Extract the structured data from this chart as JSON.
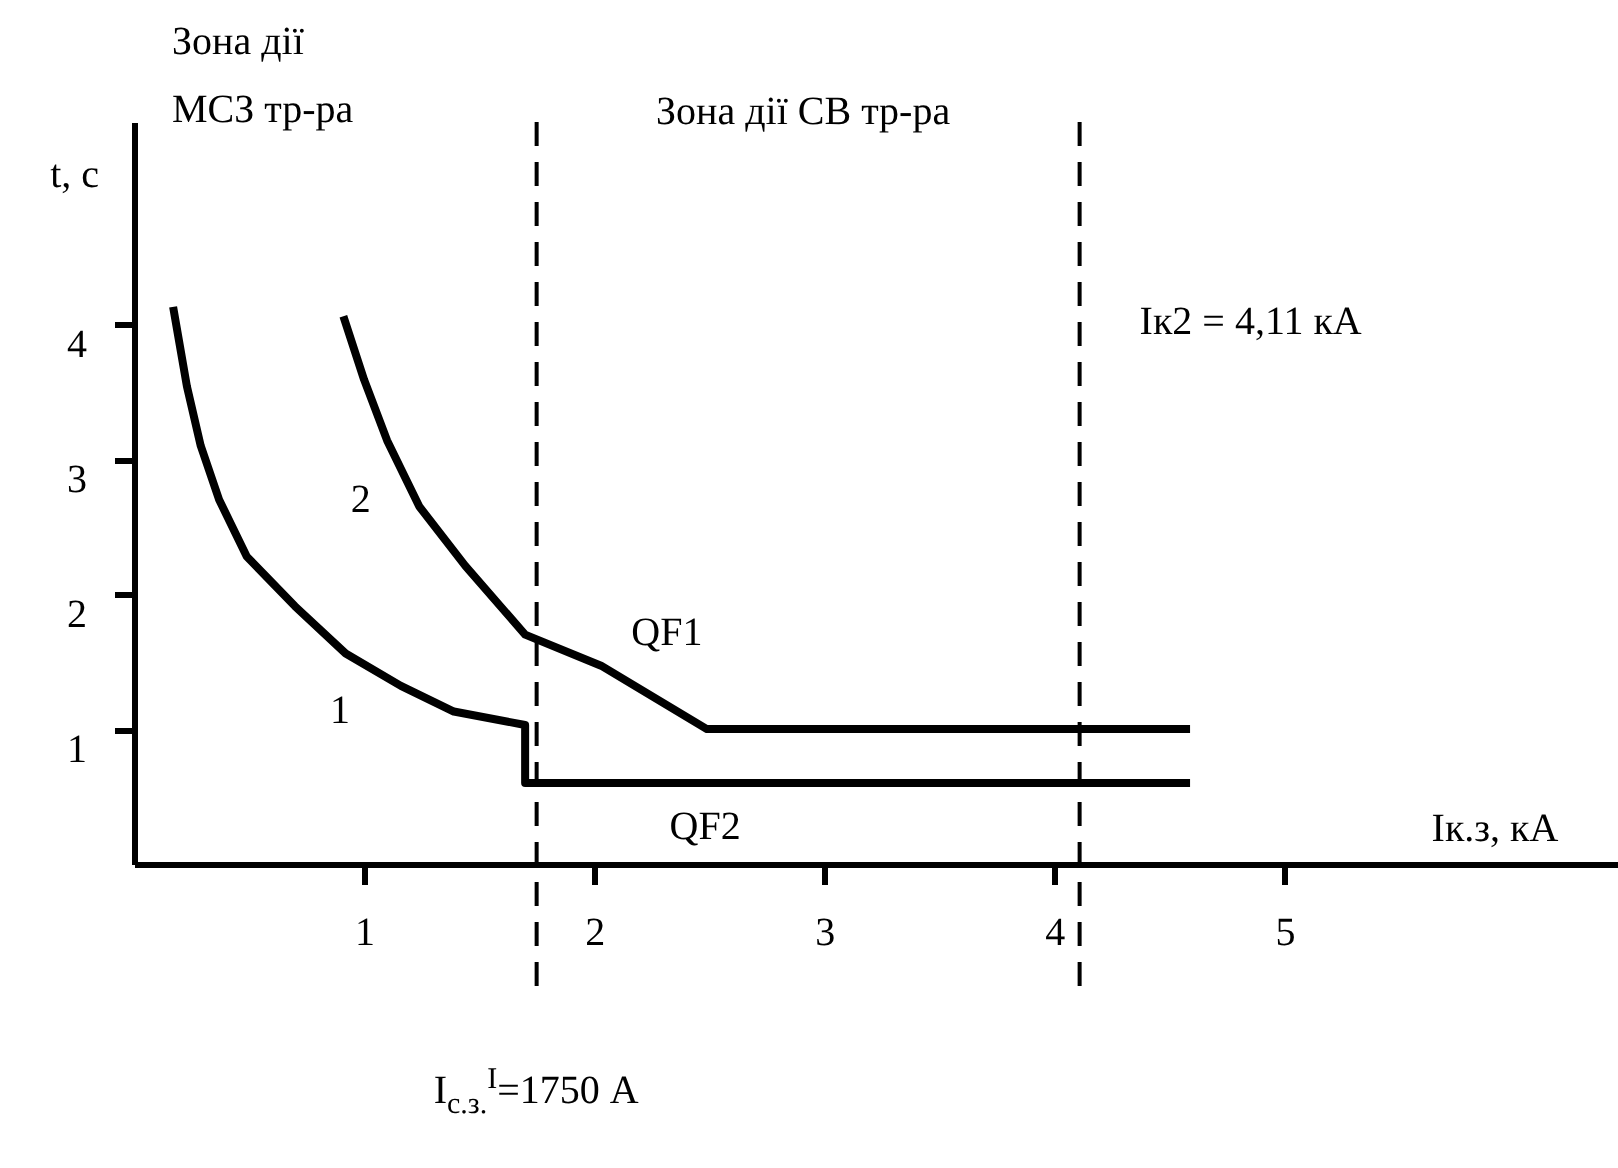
{
  "chart_data": {
    "type": "line",
    "xlabel": "Iк.з, кА",
    "ylabel": "t, с",
    "xlim": [
      0,
      6.45
    ],
    "xticks": [
      1,
      2,
      3,
      4,
      5
    ],
    "ylim": [
      0,
      5.5
    ],
    "yticks": [
      1,
      2,
      3,
      4
    ],
    "grid": false,
    "line_style": "solid",
    "marker": "none",
    "series": [
      {
        "name": "QF1",
        "color": "#000000",
        "x": [
          0.91,
          1.0,
          1.1,
          1.24,
          1.44,
          1.7,
          2.03,
          2.49,
          4.59
        ],
        "values": [
          4.06,
          3.59,
          3.14,
          2.65,
          2.21,
          1.7,
          1.47,
          1.0,
          1.0
        ]
      },
      {
        "name": "QF2",
        "color": "#000000",
        "x": [
          0.17,
          0.23,
          0.29,
          0.37,
          0.49,
          0.7,
          0.92,
          1.16,
          1.39,
          1.7,
          1.7,
          4.59
        ],
        "values": [
          4.13,
          3.54,
          3.1,
          2.7,
          2.28,
          1.91,
          1.56,
          1.32,
          1.13,
          1.03,
          0.6,
          0.6
        ]
      }
    ],
    "ref_lines": [
      {
        "axis": "x",
        "value": 1.75,
        "label": "I$_{с.з.}$$^{I}$=1750 А",
        "color": "#000000",
        "line_style": "dashed"
      },
      {
        "axis": "x",
        "value": 4.11,
        "label": "Iк2 = 4,11 кА",
        "color": "#000000",
        "line_style": "dashed"
      }
    ],
    "annotations": [
      "Зона дії МСЗ тр-ра",
      "Зона дії СВ тр-ра",
      {
        "text": "1",
        "x": 1.0,
        "y": 1.58
      },
      {
        "text": "2",
        "x": 1.09,
        "y": 3.14
      }
    ]
  }
}
